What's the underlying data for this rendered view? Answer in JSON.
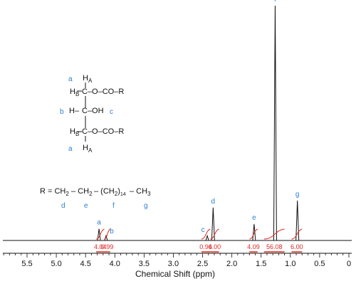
{
  "chart_data": {
    "type": "line",
    "xlabel": "Chemical Shift (ppm)",
    "xlim": [
      5.9,
      0.0
    ],
    "x_reversed": true,
    "x_ticks": [
      "5.5",
      "5.0",
      "4.5",
      "4.0",
      "3.5",
      "3.0",
      "2.5",
      "2.0",
      "1.5",
      "1.0",
      "0.5",
      "0"
    ],
    "x_tick_values": [
      5.5,
      5.0,
      4.5,
      4.0,
      3.5,
      3.0,
      2.5,
      2.0,
      1.5,
      1.0,
      0.5,
      0.0
    ],
    "peaks": [
      {
        "label": "a",
        "ppm": 4.27,
        "height": 0.05
      },
      {
        "label": "b",
        "ppm": 4.15,
        "height": 0.02
      },
      {
        "label": "c",
        "ppm": 2.42,
        "height": 0.02
      },
      {
        "label": "d",
        "ppm": 2.32,
        "height": 0.14
      },
      {
        "label": "e",
        "ppm": 1.62,
        "height": 0.07
      },
      {
        "label": "f",
        "ppm": 1.26,
        "height": 1.0
      },
      {
        "label": "g",
        "ppm": 0.88,
        "height": 0.17
      }
    ],
    "integrals": [
      {
        "value": "4.04",
        "from": 4.32,
        "to": 4.18
      },
      {
        "value": "0.99",
        "from": 4.18,
        "to": 4.08
      },
      {
        "value": "0.96",
        "from": 2.52,
        "to": 2.37
      },
      {
        "value": "4.00",
        "from": 2.37,
        "to": 2.22
      },
      {
        "value": "4.09",
        "from": 1.7,
        "to": 1.56
      },
      {
        "value": "56.08",
        "from": 1.45,
        "to": 1.1
      },
      {
        "value": "6.00",
        "from": 0.98,
        "to": 0.8
      }
    ]
  },
  "structure": {
    "labels": {
      "a": "a",
      "b": "b",
      "c": "c",
      "d": "d",
      "e": "e",
      "f": "f",
      "g": "g"
    },
    "row1": "H",
    "row1_sub": "A",
    "row2_left": "H",
    "row2_left_sub": "B",
    "row2_right": "C–O–CO–R",
    "row3_left": "H–",
    "row3_right": "C–OH",
    "row4_left": "H",
    "row4_left_sub": "B",
    "row4_right": "C–O–CO–R",
    "row5": "H",
    "row5_sub": "A",
    "r_def_1": "R = CH",
    "r_def_1_sub": "2",
    "r_def_2": "– CH",
    "r_def_2_sub": "2",
    "r_def_3": "– (CH",
    "r_def_3_sub": "2",
    "r_def_3_close": ")",
    "r_def_3_n": "14",
    "r_def_4": "– CH",
    "r_def_4_sub": "3"
  },
  "colors": {
    "spectrum": "#111111",
    "integral": "#e0271f",
    "label": "#2a7fd4"
  }
}
